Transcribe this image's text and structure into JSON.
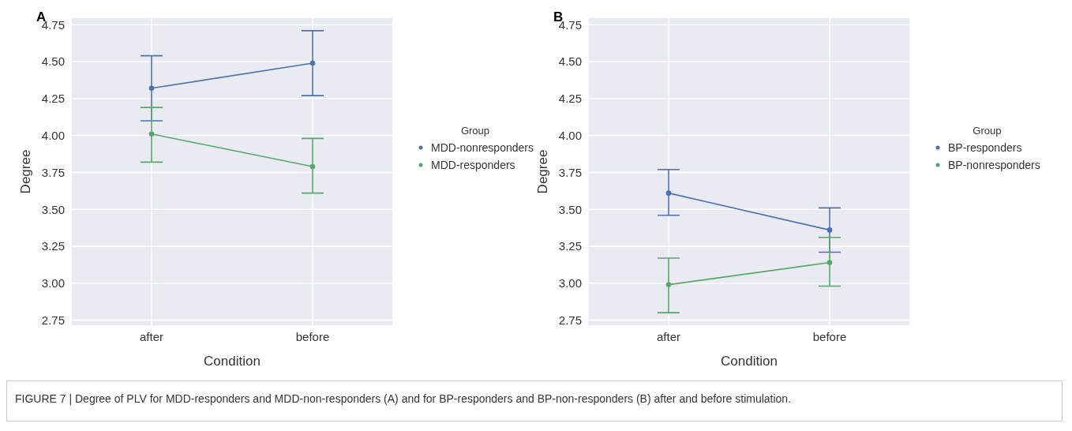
{
  "chart_data": [
    {
      "type": "line",
      "title": "A",
      "xlabel": "Condition",
      "ylabel": "Degree",
      "legend_title": "Group",
      "categories": [
        "after",
        "before"
      ],
      "series": [
        {
          "name": "MDD-nonresponders",
          "color": "#4c72b0",
          "values": [
            4.32,
            4.49
          ],
          "errors": [
            [
              4.1,
              4.54
            ],
            [
              4.27,
              4.71
            ]
          ]
        },
        {
          "name": "MDD-responders",
          "color": "#55a868",
          "values": [
            4.01,
            3.79
          ],
          "errors": [
            [
              3.82,
              4.19
            ],
            [
              3.61,
              3.98
            ]
          ]
        }
      ],
      "ylim": [
        2.71,
        4.8
      ],
      "yticks": [
        2.75,
        {
          "value": 3,
          "label": "3.00"
        },
        3.25,
        {
          "value": 3.5,
          "label": "3.50"
        },
        3.75,
        {
          "value": 4,
          "label": "4.00"
        },
        4.25,
        {
          "value": 4.5,
          "label": "4.50"
        },
        4.75
      ],
      "grid": true,
      "legend": "right",
      "marker": "circle",
      "line_style": "solid",
      "annotations": [
        "FIGURE 7 | Degree of PLV for MDD-responders and MDD-non-responders (A) and for BP-responders and BP-non-responders (B) after and before stimulation."
      ]
    },
    {
      "type": "line",
      "title": "B",
      "xlabel": "Condition",
      "ylabel": "Degree",
      "legend_title": "Group",
      "categories": [
        "after",
        "before"
      ],
      "series": [
        {
          "name": "BP-responders",
          "color": "#4c72b0",
          "values": [
            3.61,
            3.36
          ],
          "errors": [
            [
              3.46,
              3.77
            ],
            [
              3.21,
              3.51
            ]
          ]
        },
        {
          "name": "BP-nonresponders",
          "color": "#55a868",
          "values": [
            2.99,
            3.14
          ],
          "errors": [
            [
              2.8,
              3.17
            ],
            [
              2.98,
              3.31
            ]
          ]
        }
      ],
      "ylim": [
        2.71,
        4.8
      ],
      "yticks": [
        2.75,
        {
          "value": 3,
          "label": "3.00"
        },
        3.25,
        {
          "value": 3.5,
          "label": "3.50"
        },
        3.75,
        {
          "value": 4,
          "label": "4.00"
        },
        4.25,
        {
          "value": 4.5,
          "label": "4.50"
        },
        4.75
      ],
      "grid": true,
      "legend": "right",
      "marker": "circle",
      "line_style": "solid"
    }
  ]
}
